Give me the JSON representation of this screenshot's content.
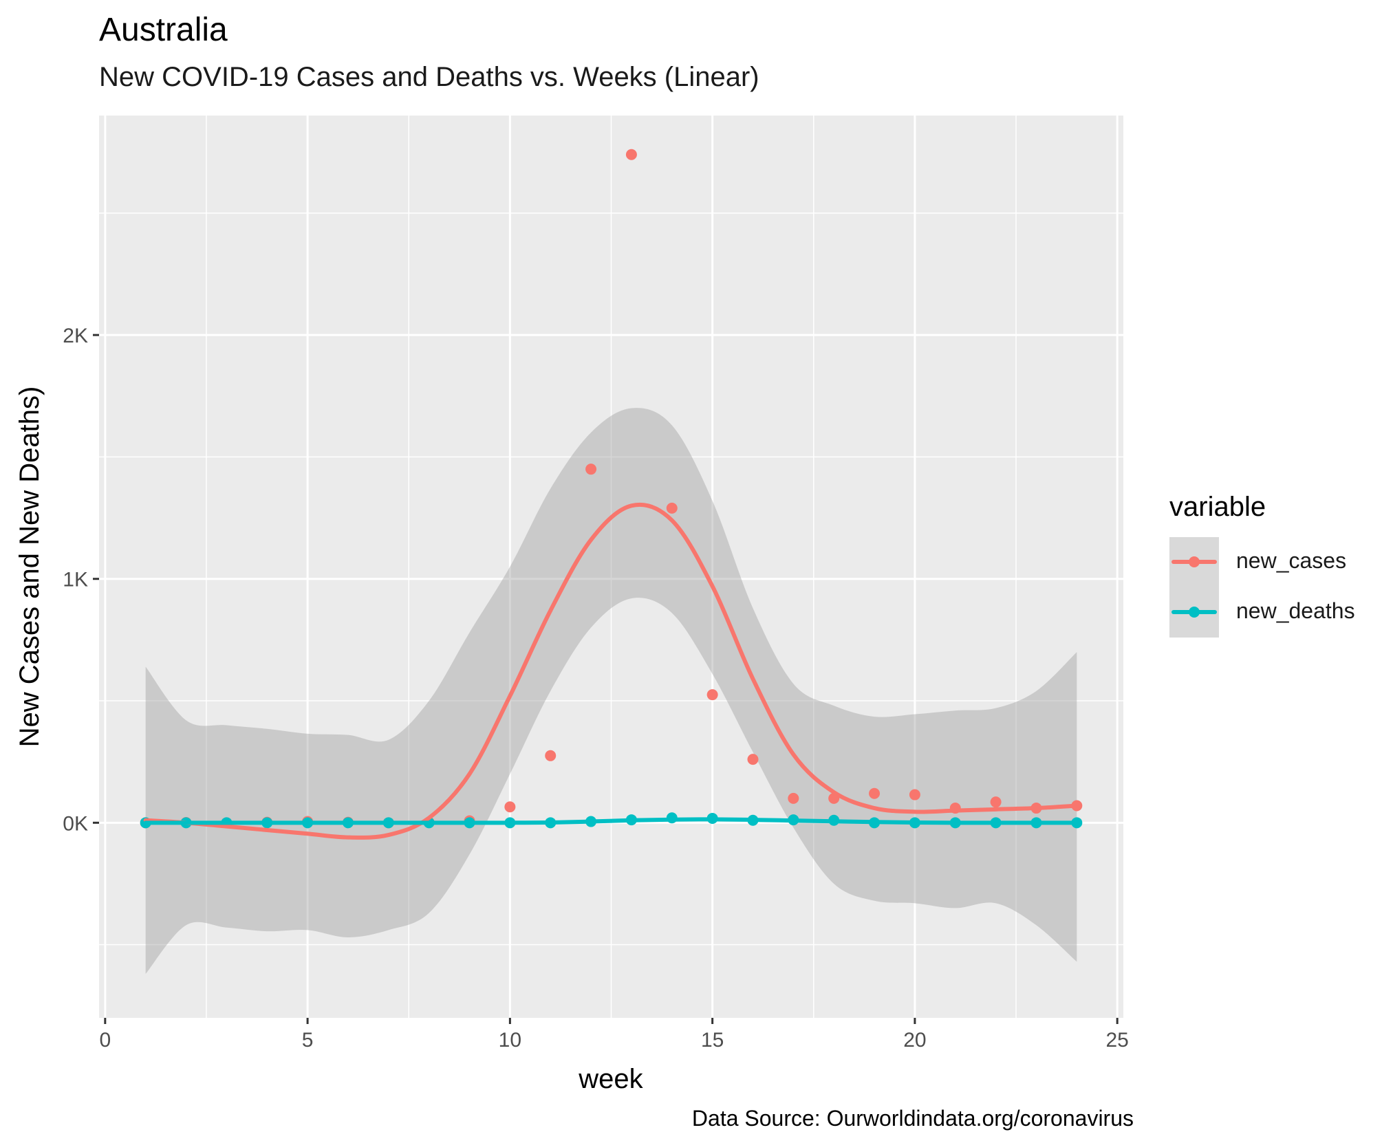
{
  "header": {
    "title": "Australia",
    "subtitle": "New COVID-19 Cases and Deaths vs. Weeks (Linear)",
    "caption": "Data Source: Ourworldindata.org/coronavirus"
  },
  "chart_data": {
    "type": "scatter",
    "title": "Australia",
    "subtitle": "New COVID-19 Cases and Deaths vs. Weeks (Linear)",
    "xlabel": "week",
    "ylabel": "New Cases and New Deaths)",
    "xlim": [
      -0.15,
      25.15
    ],
    "ylim": [
      -800,
      2900
    ],
    "x_ticks": [
      0,
      5,
      10,
      15,
      20,
      25
    ],
    "x_tick_labels": [
      "0",
      "5",
      "10",
      "15",
      "20",
      "25"
    ],
    "y_ticks": [
      0,
      1000,
      2000
    ],
    "y_tick_labels": [
      "0K",
      "1K",
      "2K"
    ],
    "grid": true,
    "legend": {
      "title": "variable",
      "position": "right"
    },
    "series": [
      {
        "name": "new_cases",
        "color": "#F8766D",
        "x": [
          1,
          2,
          3,
          4,
          5,
          6,
          7,
          8,
          9,
          10,
          11,
          12,
          13,
          14,
          15,
          16,
          17,
          18,
          19,
          20,
          21,
          22,
          23,
          24
        ],
        "values": [
          0,
          1,
          0,
          2,
          5,
          2,
          0,
          2,
          8,
          65,
          275,
          1450,
          2740,
          1290,
          525,
          260,
          100,
          100,
          120,
          115,
          60,
          85,
          60,
          70
        ],
        "smooth": {
          "x": [
            1,
            2,
            3,
            4,
            5,
            6,
            7,
            8,
            9,
            10,
            11,
            12,
            13,
            14,
            15,
            16,
            17,
            18,
            19,
            20,
            21,
            22,
            23,
            24
          ],
          "y": [
            10,
            0,
            -15,
            -30,
            -45,
            -60,
            -50,
            20,
            200,
            520,
            870,
            1160,
            1300,
            1240,
            970,
            590,
            280,
            125,
            60,
            45,
            50,
            55,
            60,
            70
          ],
          "band_upper": [
            640,
            420,
            400,
            385,
            365,
            360,
            340,
            500,
            780,
            1050,
            1370,
            1600,
            1700,
            1630,
            1320,
            880,
            570,
            480,
            435,
            445,
            460,
            470,
            540,
            700
          ],
          "band_lower": [
            -620,
            -420,
            -430,
            -445,
            -440,
            -470,
            -440,
            -370,
            -130,
            200,
            540,
            800,
            920,
            860,
            610,
            290,
            -20,
            -250,
            -320,
            -330,
            -350,
            -330,
            -420,
            -570
          ]
        }
      },
      {
        "name": "new_deaths",
        "color": "#00BFC4",
        "x": [
          1,
          2,
          3,
          4,
          5,
          6,
          7,
          8,
          9,
          10,
          11,
          12,
          13,
          14,
          15,
          16,
          17,
          18,
          19,
          20,
          21,
          22,
          23,
          24
        ],
        "values": [
          0,
          0,
          0,
          0,
          0,
          0,
          0,
          0,
          0,
          0,
          0,
          5,
          12,
          20,
          18,
          10,
          12,
          10,
          0,
          0,
          0,
          0,
          0,
          0
        ],
        "smooth": {
          "x": [
            1,
            2,
            3,
            4,
            5,
            6,
            7,
            8,
            9,
            10,
            11,
            12,
            13,
            14,
            15,
            16,
            17,
            18,
            19,
            20,
            21,
            22,
            23,
            24
          ],
          "y": [
            0,
            0,
            0,
            0,
            0,
            0,
            0,
            0,
            0,
            0,
            1,
            5,
            10,
            13,
            14,
            12,
            9,
            6,
            3,
            1,
            0,
            0,
            0,
            0
          ]
        }
      }
    ]
  }
}
